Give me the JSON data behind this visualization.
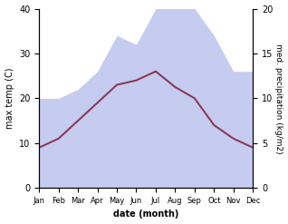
{
  "months": [
    "Jan",
    "Feb",
    "Mar",
    "Apr",
    "May",
    "Jun",
    "Jul",
    "Aug",
    "Sep",
    "Oct",
    "Nov",
    "Dec"
  ],
  "max_temp": [
    9.0,
    11.0,
    15.0,
    19.0,
    23.0,
    24.0,
    26.0,
    22.5,
    20.0,
    14.0,
    11.0,
    9.0
  ],
  "precipitation": [
    10.0,
    10.0,
    11.0,
    13.0,
    17.0,
    16.0,
    20.0,
    21.0,
    20.0,
    17.0,
    13.0,
    13.0
  ],
  "temp_color": "#8B3A5A",
  "precip_fill_color": "#c5ccf0",
  "ylim_temp": [
    0,
    40
  ],
  "ylim_precip": [
    0,
    20
  ],
  "precip_right_ticks": [
    0,
    5,
    10,
    15,
    20
  ],
  "temp_left_ticks": [
    0,
    10,
    20,
    30,
    40
  ],
  "xlabel": "date (month)",
  "ylabel_left": "max temp (C)",
  "ylabel_right": "med. precipitation (kg/m2)",
  "figsize": [
    3.18,
    2.47
  ],
  "dpi": 100
}
